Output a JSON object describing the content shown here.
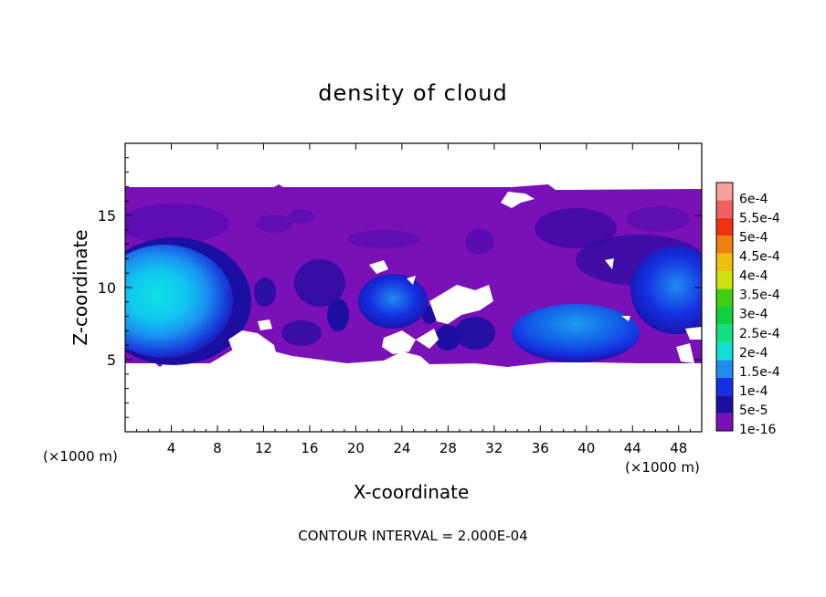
{
  "chart_data": {
    "type": "heatmap",
    "title": "density of cloud",
    "xlabel": "X-coordinate",
    "ylabel": "Z-coordinate",
    "x_unit_left": "(×1000 m)",
    "x_unit_right": "(×1000 m)",
    "note": "CONTOUR INTERVAL = 2.000E-04",
    "xlim": [
      0,
      50
    ],
    "ylim": [
      0,
      20
    ],
    "x_ticks": [
      "4",
      "8",
      "12",
      "16",
      "20",
      "24",
      "28",
      "32",
      "36",
      "40",
      "44",
      "48"
    ],
    "y_ticks": [
      "5",
      "10",
      "15"
    ],
    "colorbar": {
      "labels": [
        "1e-16",
        "5e-5",
        "1e-4",
        "1.5e-4",
        "2e-4",
        "2.5e-4",
        "3e-4",
        "3.5e-4",
        "4e-4",
        "4.5e-4",
        "5e-4",
        "5.5e-4",
        "6e-4"
      ],
      "colors": [
        "#7a10b8",
        "#1a0fa0",
        "#1430e0",
        "#1e8cf0",
        "#10e0d0",
        "#10e080",
        "#10d040",
        "#40d010",
        "#d0e010",
        "#f0c010",
        "#f08010",
        "#f03010",
        "#f06060",
        "#f8a0a0"
      ]
    },
    "cloud_layer": {
      "z_min": 4.5,
      "z_max": 17
    },
    "features": [
      {
        "name": "core-left",
        "x": 4,
        "z": 9.5,
        "level": 0.0002
      },
      {
        "name": "core-mid",
        "x": 23,
        "z": 9.5,
        "level": 0.00012
      },
      {
        "name": "core-right-low",
        "x": 38,
        "z": 7,
        "level": 0.00015
      },
      {
        "name": "core-right-edge",
        "x": 49,
        "z": 10.5,
        "level": 0.00012
      }
    ]
  }
}
